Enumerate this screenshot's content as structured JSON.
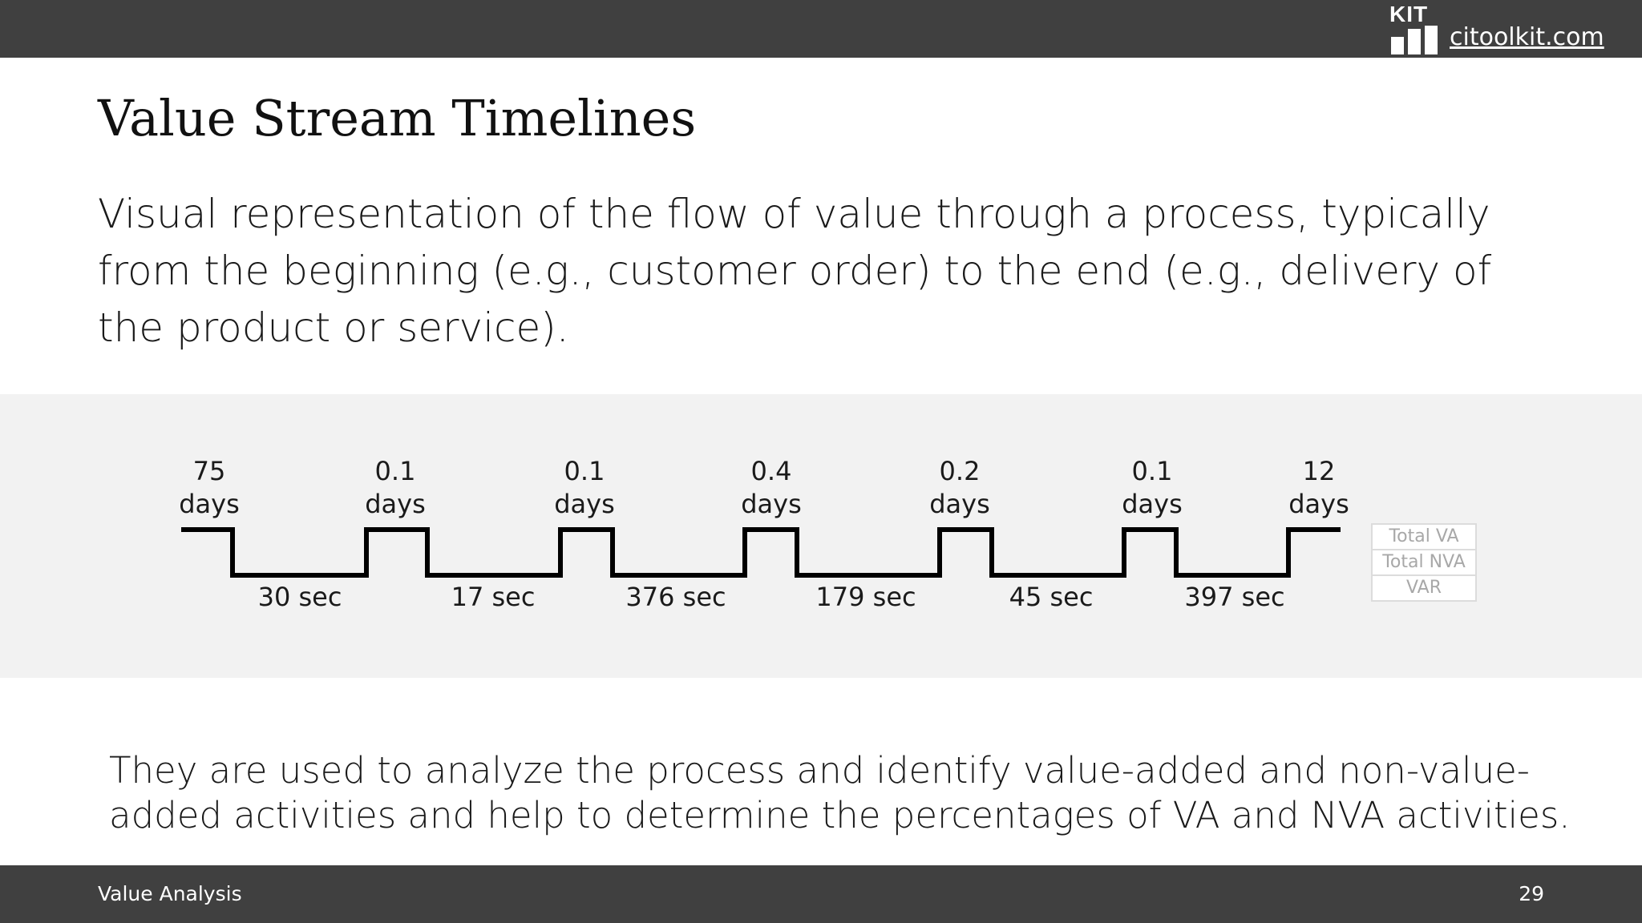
{
  "header": {
    "logo_text": "KIT",
    "site_link": "citoolkit.com"
  },
  "slide": {
    "title": "Value Stream Timelines",
    "description": "Visual representation of the flow of value through a process, typically from the beginning (e.g., customer order) to the end (e.g., delivery of the product or service).",
    "conclusion": "They are used to analyze the process and identify value-added and non-value-added activities and help to determine the percentages of VA and NVA activities."
  },
  "timeline": {
    "waits": [
      {
        "value": "75",
        "unit": "days"
      },
      {
        "value": "0.1",
        "unit": "days"
      },
      {
        "value": "0.1",
        "unit": "days"
      },
      {
        "value": "0.4",
        "unit": "days"
      },
      {
        "value": "0.2",
        "unit": "days"
      },
      {
        "value": "0.1",
        "unit": "days"
      },
      {
        "value": "12",
        "unit": "days"
      }
    ],
    "process_times": [
      "30 sec",
      "17 sec",
      "376 sec",
      "179 sec",
      "45 sec",
      "397 sec"
    ],
    "summary": [
      "Total VA",
      "Total NVA",
      "VAR"
    ]
  },
  "footer": {
    "section": "Value Analysis",
    "page_number": "29"
  },
  "colors": {
    "bar": "#404040",
    "band": "#f2f2f2",
    "line": "#000000"
  }
}
